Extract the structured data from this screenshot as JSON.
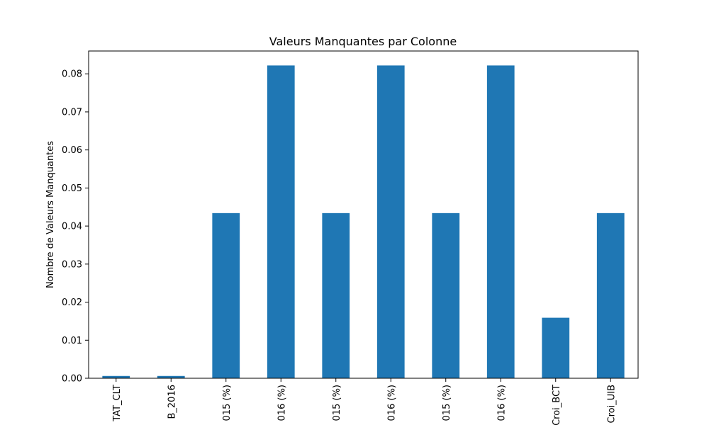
{
  "chart_data": {
    "type": "bar",
    "title": "Valeurs Manquantes par Colonne",
    "xlabel": "",
    "ylabel": "Nombre de Valeurs Manquantes",
    "categories": [
      "TAT_CLT",
      "B_2016",
      "015 (%)",
      "016 (%)",
      "015 (%)",
      "016 (%)",
      "015 (%)",
      "016 (%)",
      "Croi_BCT",
      "Croi_UIB"
    ],
    "values": [
      0.0006,
      0.0006,
      0.0434,
      0.0822,
      0.0434,
      0.0822,
      0.0434,
      0.0822,
      0.0159,
      0.0434
    ],
    "ylim": [
      0,
      0.086
    ],
    "yticks": [
      "0.00",
      "0.01",
      "0.02",
      "0.03",
      "0.04",
      "0.05",
      "0.06",
      "0.07",
      "0.08"
    ],
    "ytick_values": [
      0,
      0.01,
      0.02,
      0.03,
      0.04,
      0.05,
      0.06,
      0.07,
      0.08
    ],
    "grid": false,
    "bar_color": "#1f77b4"
  }
}
